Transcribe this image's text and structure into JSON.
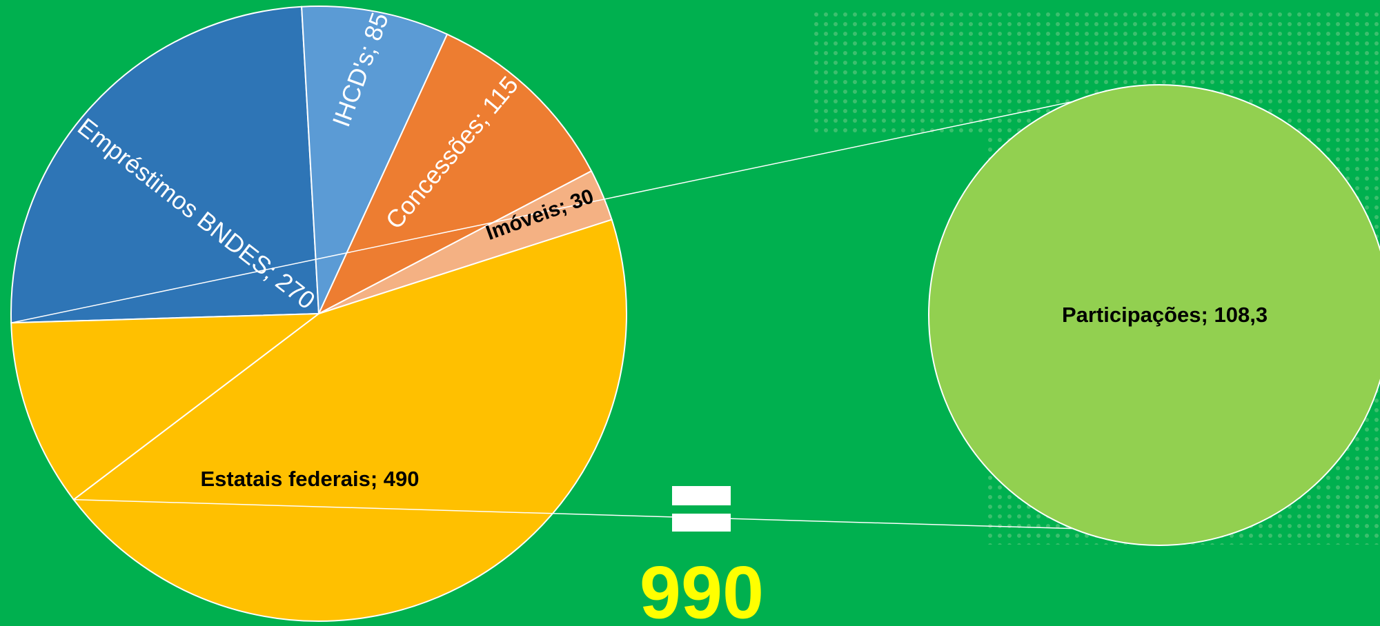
{
  "chart_data": {
    "type": "pie-of-pie",
    "categories": [
      "Empréstimos BNDES",
      "IHCD's",
      "Concessões",
      "Imóveis",
      "Estatais federais",
      "Participações"
    ],
    "values": [
      270,
      85,
      115,
      30,
      490,
      108.3
    ],
    "value_labels": [
      "Empréstimos BNDES; 270",
      "IHCD's; 85",
      "Concessões; 115",
      "Imóveis; 30",
      "Estatais federais; 490",
      "Participações; 108,3"
    ],
    "colors": [
      "#2e75b6",
      "#5b9bd5",
      "#ed7d31",
      "#f4b183",
      "#ffc000",
      "#92d050"
    ],
    "other_slice_color": "#ffc000",
    "total_label": "990"
  }
}
